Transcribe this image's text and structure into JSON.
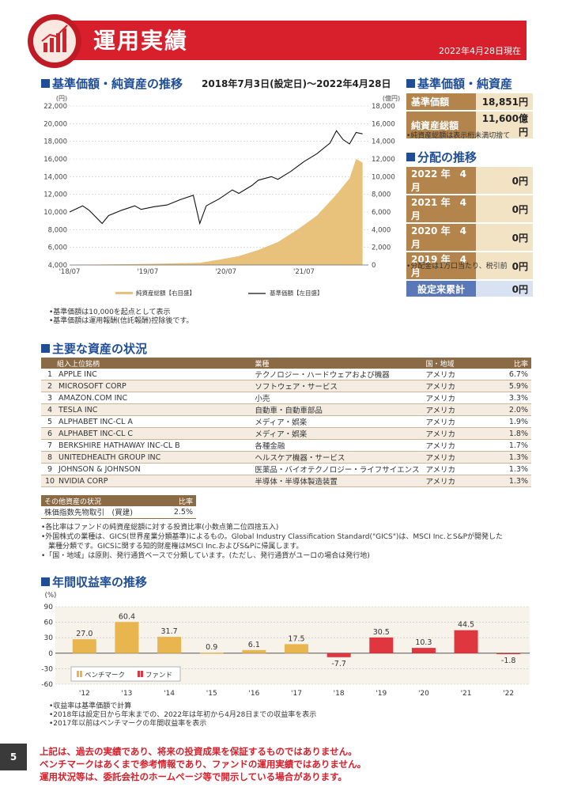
{
  "header": {
    "title": "運用実績",
    "date": "2022年4月28日現在"
  },
  "nav_section": {
    "title": "基準価額・純資産の推移",
    "period": "2018年7月3日(設定日)～2022年4月28日",
    "left_unit": "(円)",
    "right_unit": "(億円)",
    "legend_asset": "純資産総額【右目盛】",
    "legend_nav": "基準価額【左目盛】",
    "notes": [
      "•基準価額は10,000を起点として表示",
      "•基準価額は運用報酬(信託報酬)控除後です。"
    ]
  },
  "chart_data": [
    {
      "type": "line",
      "title": "基準価額・純資産の推移",
      "x_ticks": [
        "'18/07",
        "'19/07",
        "'20/07",
        "'21/07"
      ],
      "y_left_ticks": [
        "4,000",
        "6,000",
        "8,000",
        "10,000",
        "12,000",
        "14,000",
        "16,000",
        "18,000",
        "20,000",
        "22,000"
      ],
      "y_right_ticks": [
        "0",
        "2,000",
        "4,000",
        "6,000",
        "8,000",
        "10,000",
        "12,000",
        "14,000",
        "16,000",
        "18,000"
      ],
      "ylim_left": [
        4000,
        22000
      ],
      "ylim_right": [
        0,
        18000
      ],
      "series": [
        {
          "name": "基準価額【左目盛】",
          "axis": "left",
          "x": [
            "2018-07",
            "2018-09",
            "2018-10",
            "2018-12",
            "2019-01",
            "2019-03",
            "2019-05",
            "2019-06",
            "2019-08",
            "2019-10",
            "2019-12",
            "2020-02",
            "2020-03",
            "2020-04",
            "2020-06",
            "2020-08",
            "2020-09",
            "2020-11",
            "2020-12",
            "2021-02",
            "2021-03",
            "2021-05",
            "2021-07",
            "2021-09",
            "2021-11",
            "2021-12",
            "2022-01",
            "2022-02",
            "2022-03",
            "2022-04"
          ],
          "values": [
            10000,
            10700,
            10200,
            8700,
            9600,
            10200,
            10700,
            10300,
            10600,
            10800,
            11400,
            11900,
            8700,
            10700,
            11500,
            12500,
            12100,
            13000,
            13600,
            14000,
            13700,
            14600,
            15700,
            16600,
            17800,
            19200,
            18200,
            17700,
            19000,
            18851
          ]
        },
        {
          "name": "純資産総額【右目盛】",
          "axis": "right",
          "x": [
            "2018-07",
            "2018-12",
            "2019-06",
            "2019-12",
            "2020-03",
            "2020-06",
            "2020-09",
            "2020-12",
            "2021-03",
            "2021-06",
            "2021-09",
            "2021-12",
            "2022-02",
            "2022-03",
            "2022-04"
          ],
          "values": [
            0,
            50,
            120,
            200,
            250,
            600,
            1000,
            1700,
            2600,
            4000,
            5600,
            8000,
            9800,
            12000,
            11600
          ]
        }
      ]
    },
    {
      "type": "bar",
      "title": "年間収益率の推移",
      "ylabel": "(%)",
      "ylim": [
        -60,
        90
      ],
      "y_ticks": [
        "90",
        "60",
        "30",
        "0",
        "-30",
        "-60"
      ],
      "categories": [
        "'12",
        "'13",
        "'14",
        "'15",
        "'16",
        "'17",
        "'18",
        "'19",
        "'20",
        "'21",
        "'22"
      ],
      "series": [
        {
          "name": "ベンチマーク",
          "values": [
            27.0,
            60.4,
            31.7,
            0.9,
            6.1,
            17.5,
            null,
            null,
            null,
            null,
            null
          ],
          "labels": [
            "27.0",
            "60.4",
            "31.7",
            "0.9",
            "6.1",
            "17.5",
            "",
            "",
            "",
            "",
            ""
          ],
          "color": "#e8b54f"
        },
        {
          "name": "ファンド",
          "values": [
            null,
            null,
            null,
            null,
            null,
            null,
            -7.7,
            30.5,
            10.3,
            44.5,
            -1.8
          ],
          "labels": [
            "",
            "",
            "",
            "",
            "",
            "",
            "-7.7",
            "30.5",
            "10.3",
            "44.5",
            "-1.8"
          ],
          "color": "#e0363f"
        }
      ]
    }
  ],
  "nav_box": {
    "title": "基準価額・純資産",
    "rows": [
      {
        "label": "基準価額",
        "value": "18,851円"
      },
      {
        "label": "純資産総額",
        "value": "11,600億円"
      }
    ],
    "note": "•純資産総額は表示桁未満切捨て"
  },
  "dist_box": {
    "title": "分配の推移",
    "rows": [
      {
        "label": "2022 年　4月",
        "value": "0円"
      },
      {
        "label": "2021 年　4月",
        "value": "0円"
      },
      {
        "label": "2020 年　4月",
        "value": "0円"
      },
      {
        "label": "2019 年　4月",
        "value": "0円"
      }
    ],
    "total_label": "設定来累計",
    "total_value": "0円",
    "note": "•分配金は1万口当たり、税引前"
  },
  "holdings": {
    "title": "主要な資産の状況",
    "headers": [
      "組入上位銘柄",
      "業種",
      "国・地域",
      "比率"
    ],
    "rows": [
      {
        "no": "1",
        "name": "APPLE INC",
        "sector": "テクノロジー・ハードウェアおよび機器",
        "country": "アメリカ",
        "ratio": "6.7%"
      },
      {
        "no": "2",
        "name": "MICROSOFT CORP",
        "sector": "ソフトウェア・サービス",
        "country": "アメリカ",
        "ratio": "5.9%"
      },
      {
        "no": "3",
        "name": "AMAZON.COM INC",
        "sector": "小売",
        "country": "アメリカ",
        "ratio": "3.3%"
      },
      {
        "no": "4",
        "name": "TESLA INC",
        "sector": "自動車・自動車部品",
        "country": "アメリカ",
        "ratio": "2.0%"
      },
      {
        "no": "5",
        "name": "ALPHABET INC-CL A",
        "sector": "メディア・娯楽",
        "country": "アメリカ",
        "ratio": "1.9%"
      },
      {
        "no": "6",
        "name": "ALPHABET INC-CL C",
        "sector": "メディア・娯楽",
        "country": "アメリカ",
        "ratio": "1.8%"
      },
      {
        "no": "7",
        "name": "BERKSHIRE HATHAWAY INC-CL B",
        "sector": "各種金融",
        "country": "アメリカ",
        "ratio": "1.7%"
      },
      {
        "no": "8",
        "name": "UNITEDHEALTH GROUP INC",
        "sector": "ヘルスケア機器・サービス",
        "country": "アメリカ",
        "ratio": "1.3%"
      },
      {
        "no": "9",
        "name": "JOHNSON & JOHNSON",
        "sector": "医薬品・バイオテクノロジー・ライフサイエンス",
        "country": "アメリカ",
        "ratio": "1.3%"
      },
      {
        "no": "10",
        "name": "NVIDIA CORP",
        "sector": "半導体・半導体製造装置",
        "country": "アメリカ",
        "ratio": "1.3%"
      }
    ],
    "other_headers": [
      "その他資産の状況",
      "比率"
    ],
    "other_rows": [
      {
        "name": "株価指数先物取引　(買建)",
        "ratio": "2.5%"
      }
    ],
    "notes": [
      "•各比率はファンドの純資産総額に対する投資比率(小数点第二位四捨五入)",
      "•外国株式の業種は、GICS(世界産業分類基準)によるもの。Global Industry Classification Standard(\"GICS\")は、MSCI Inc.とS&Pが開発した",
      "　業種分類です。GICSに関する知的財産権はMSCI Inc.およびS&Pに帰属します。",
      "•「国・地域」は原則、発行通貨ベースで分類しています。(ただし、発行通貨がユーロの場合は発行地)"
    ]
  },
  "returns": {
    "title": "年間収益率の推移",
    "legend_bench": "ベンチマーク",
    "legend_fund": "ファンド",
    "notes": [
      "•収益率は基準価額で計算",
      "•2018年は設定日から年末までの、2022年は年初から4月28日までの収益率を表示",
      "•2017年以前はベンチマークの年間収益率を表示"
    ]
  },
  "disclaimer": [
    "上記は、過去の実績であり、将来の投資成果を保証するものではありません。",
    "ベンチマークはあくまで参考情報であり、ファンドの運用実績ではありません。",
    "運用状況等は、委託会社のホームページ等で開示している場合があります。"
  ],
  "page_number": "5"
}
